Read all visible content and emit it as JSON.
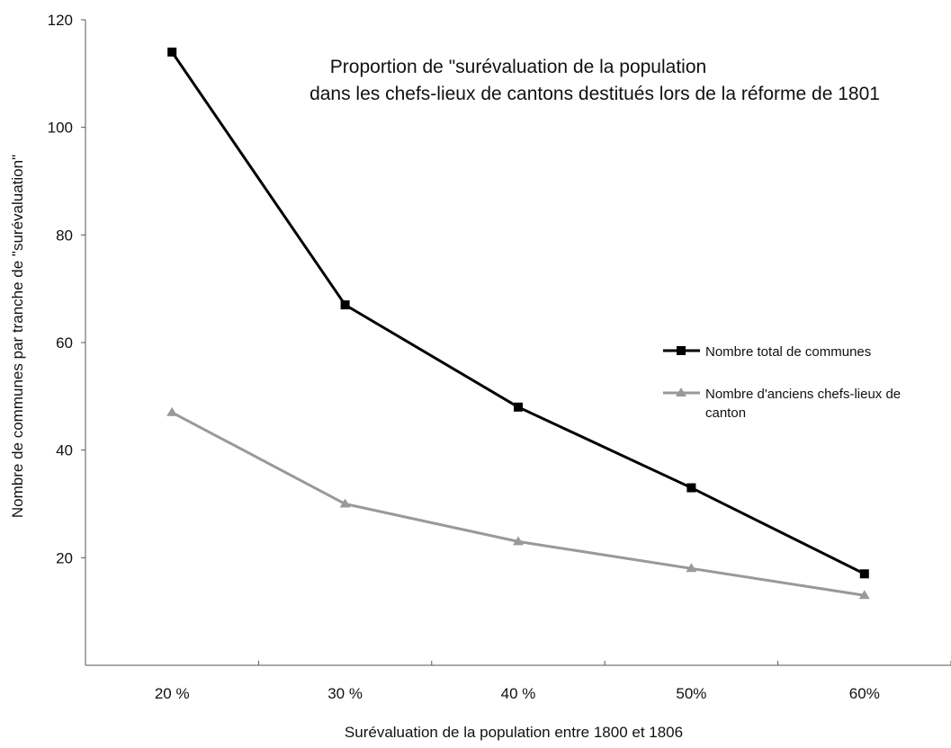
{
  "chart_data": {
    "type": "line",
    "title_lines": [
      "Proportion de \"surévaluation de la population",
      "dans les chefs-lieux de cantons destitués lors de la réforme de 1801"
    ],
    "xlabel": "Surévaluation de la population entre 1800 et 1806",
    "ylabel": "Nombre de communes par tranche de \"surévaluation\"",
    "categories": [
      "20 %",
      "30 %",
      "40 %",
      "50%",
      "60%"
    ],
    "ylim": [
      0,
      120
    ],
    "yticks": [
      20,
      40,
      60,
      80,
      100,
      120
    ],
    "grid": false,
    "legend_position": "right",
    "series": [
      {
        "name": "Nombre total de communes",
        "name_lines": [
          "Nombre total de communes"
        ],
        "values": [
          114,
          67,
          48,
          33,
          17
        ],
        "color": "#000000",
        "marker": "square"
      },
      {
        "name": "Nombre d'anciens chefs-lieux de canton",
        "name_lines": [
          "Nombre d'anciens chefs-lieux de",
          "canton"
        ],
        "values": [
          47,
          30,
          23,
          18,
          13
        ],
        "color": "#999999",
        "marker": "triangle"
      }
    ]
  }
}
